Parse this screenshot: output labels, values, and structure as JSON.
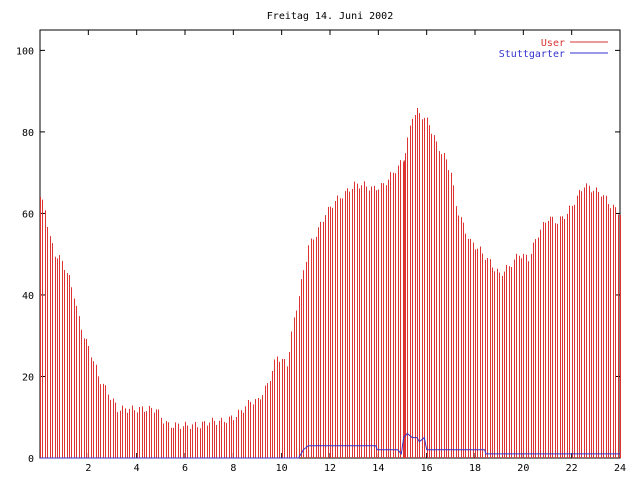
{
  "chart_data": {
    "type": "line",
    "title": "Freitag 14. Juni 2002",
    "xlabel": "",
    "ylabel": "",
    "xlim": [
      0,
      24
    ],
    "ylim": [
      0,
      105
    ],
    "x_ticks": [
      "2",
      "4",
      "6",
      "8",
      "10",
      "12",
      "14",
      "16",
      "18",
      "20",
      "22",
      "24"
    ],
    "y_ticks": [
      "0",
      "20",
      "40",
      "60",
      "80",
      "100"
    ],
    "x_step": 0.1,
    "legend_position": "top-right",
    "grid": false,
    "series": [
      {
        "name": "User",
        "color": "#dd3333",
        "style": "impulses",
        "keypoints": [
          [
            0,
            64
          ],
          [
            0.2,
            61
          ],
          [
            0.4,
            54
          ],
          [
            0.6,
            50
          ],
          [
            0.8,
            49
          ],
          [
            1.0,
            47
          ],
          [
            1.2,
            44
          ],
          [
            1.4,
            40
          ],
          [
            1.6,
            34
          ],
          [
            1.8,
            30
          ],
          [
            2.0,
            27
          ],
          [
            2.2,
            24
          ],
          [
            2.4,
            20
          ],
          [
            2.6,
            18
          ],
          [
            2.8,
            16
          ],
          [
            3.0,
            14
          ],
          [
            3.2,
            12
          ],
          [
            3.4,
            12
          ],
          [
            3.6,
            12
          ],
          [
            4.0,
            12
          ],
          [
            4.4,
            12
          ],
          [
            4.8,
            12
          ],
          [
            5.0,
            10
          ],
          [
            5.3,
            8
          ],
          [
            6.0,
            8
          ],
          [
            6.6,
            8
          ],
          [
            7.0,
            9
          ],
          [
            7.5,
            9
          ],
          [
            8.0,
            10
          ],
          [
            8.4,
            12
          ],
          [
            8.7,
            14
          ],
          [
            9.0,
            14
          ],
          [
            9.4,
            18
          ],
          [
            9.8,
            25
          ],
          [
            10.2,
            23
          ],
          [
            10.5,
            34
          ],
          [
            10.8,
            43
          ],
          [
            11.1,
            52
          ],
          [
            11.5,
            56
          ],
          [
            11.8,
            60
          ],
          [
            12.2,
            63
          ],
          [
            12.6,
            65
          ],
          [
            13.0,
            67
          ],
          [
            13.4,
            67
          ],
          [
            13.8,
            66
          ],
          [
            14.2,
            67
          ],
          [
            14.6,
            70
          ],
          [
            15.0,
            73
          ],
          [
            15.2,
            78
          ],
          [
            15.4,
            84
          ],
          [
            15.6,
            85
          ],
          [
            15.8,
            84
          ],
          [
            16.1,
            82
          ],
          [
            16.4,
            77
          ],
          [
            16.8,
            73
          ],
          [
            17.0,
            70
          ],
          [
            17.2,
            62
          ],
          [
            17.5,
            57
          ],
          [
            17.8,
            53
          ],
          [
            18.2,
            51
          ],
          [
            18.6,
            48
          ],
          [
            19.0,
            45
          ],
          [
            19.4,
            47
          ],
          [
            19.8,
            50
          ],
          [
            20.2,
            49
          ],
          [
            20.6,
            55
          ],
          [
            21.0,
            59
          ],
          [
            21.4,
            58
          ],
          [
            21.8,
            60
          ],
          [
            22.2,
            64
          ],
          [
            22.5,
            67
          ],
          [
            22.8,
            66
          ],
          [
            23.2,
            65
          ],
          [
            23.6,
            62
          ],
          [
            24.0,
            60
          ]
        ]
      },
      {
        "name": "Stuttgarter",
        "color": "#3333cc",
        "style": "line",
        "keypoints": [
          [
            0,
            0
          ],
          [
            10.7,
            0
          ],
          [
            10.9,
            2
          ],
          [
            11.1,
            3
          ],
          [
            13.9,
            3
          ],
          [
            13.95,
            2
          ],
          [
            14.8,
            2
          ],
          [
            14.95,
            1
          ],
          [
            15.05,
            5
          ],
          [
            15.2,
            6
          ],
          [
            15.4,
            5
          ],
          [
            15.6,
            5
          ],
          [
            15.7,
            4
          ],
          [
            15.9,
            5
          ],
          [
            16.0,
            2
          ],
          [
            18.4,
            2
          ],
          [
            18.45,
            1
          ],
          [
            24.0,
            1
          ]
        ]
      }
    ],
    "annotations": [
      {
        "x": 15.05,
        "y": 73,
        "label": "",
        "note_kind": "marker-line",
        "color": "#dd3333"
      }
    ]
  }
}
